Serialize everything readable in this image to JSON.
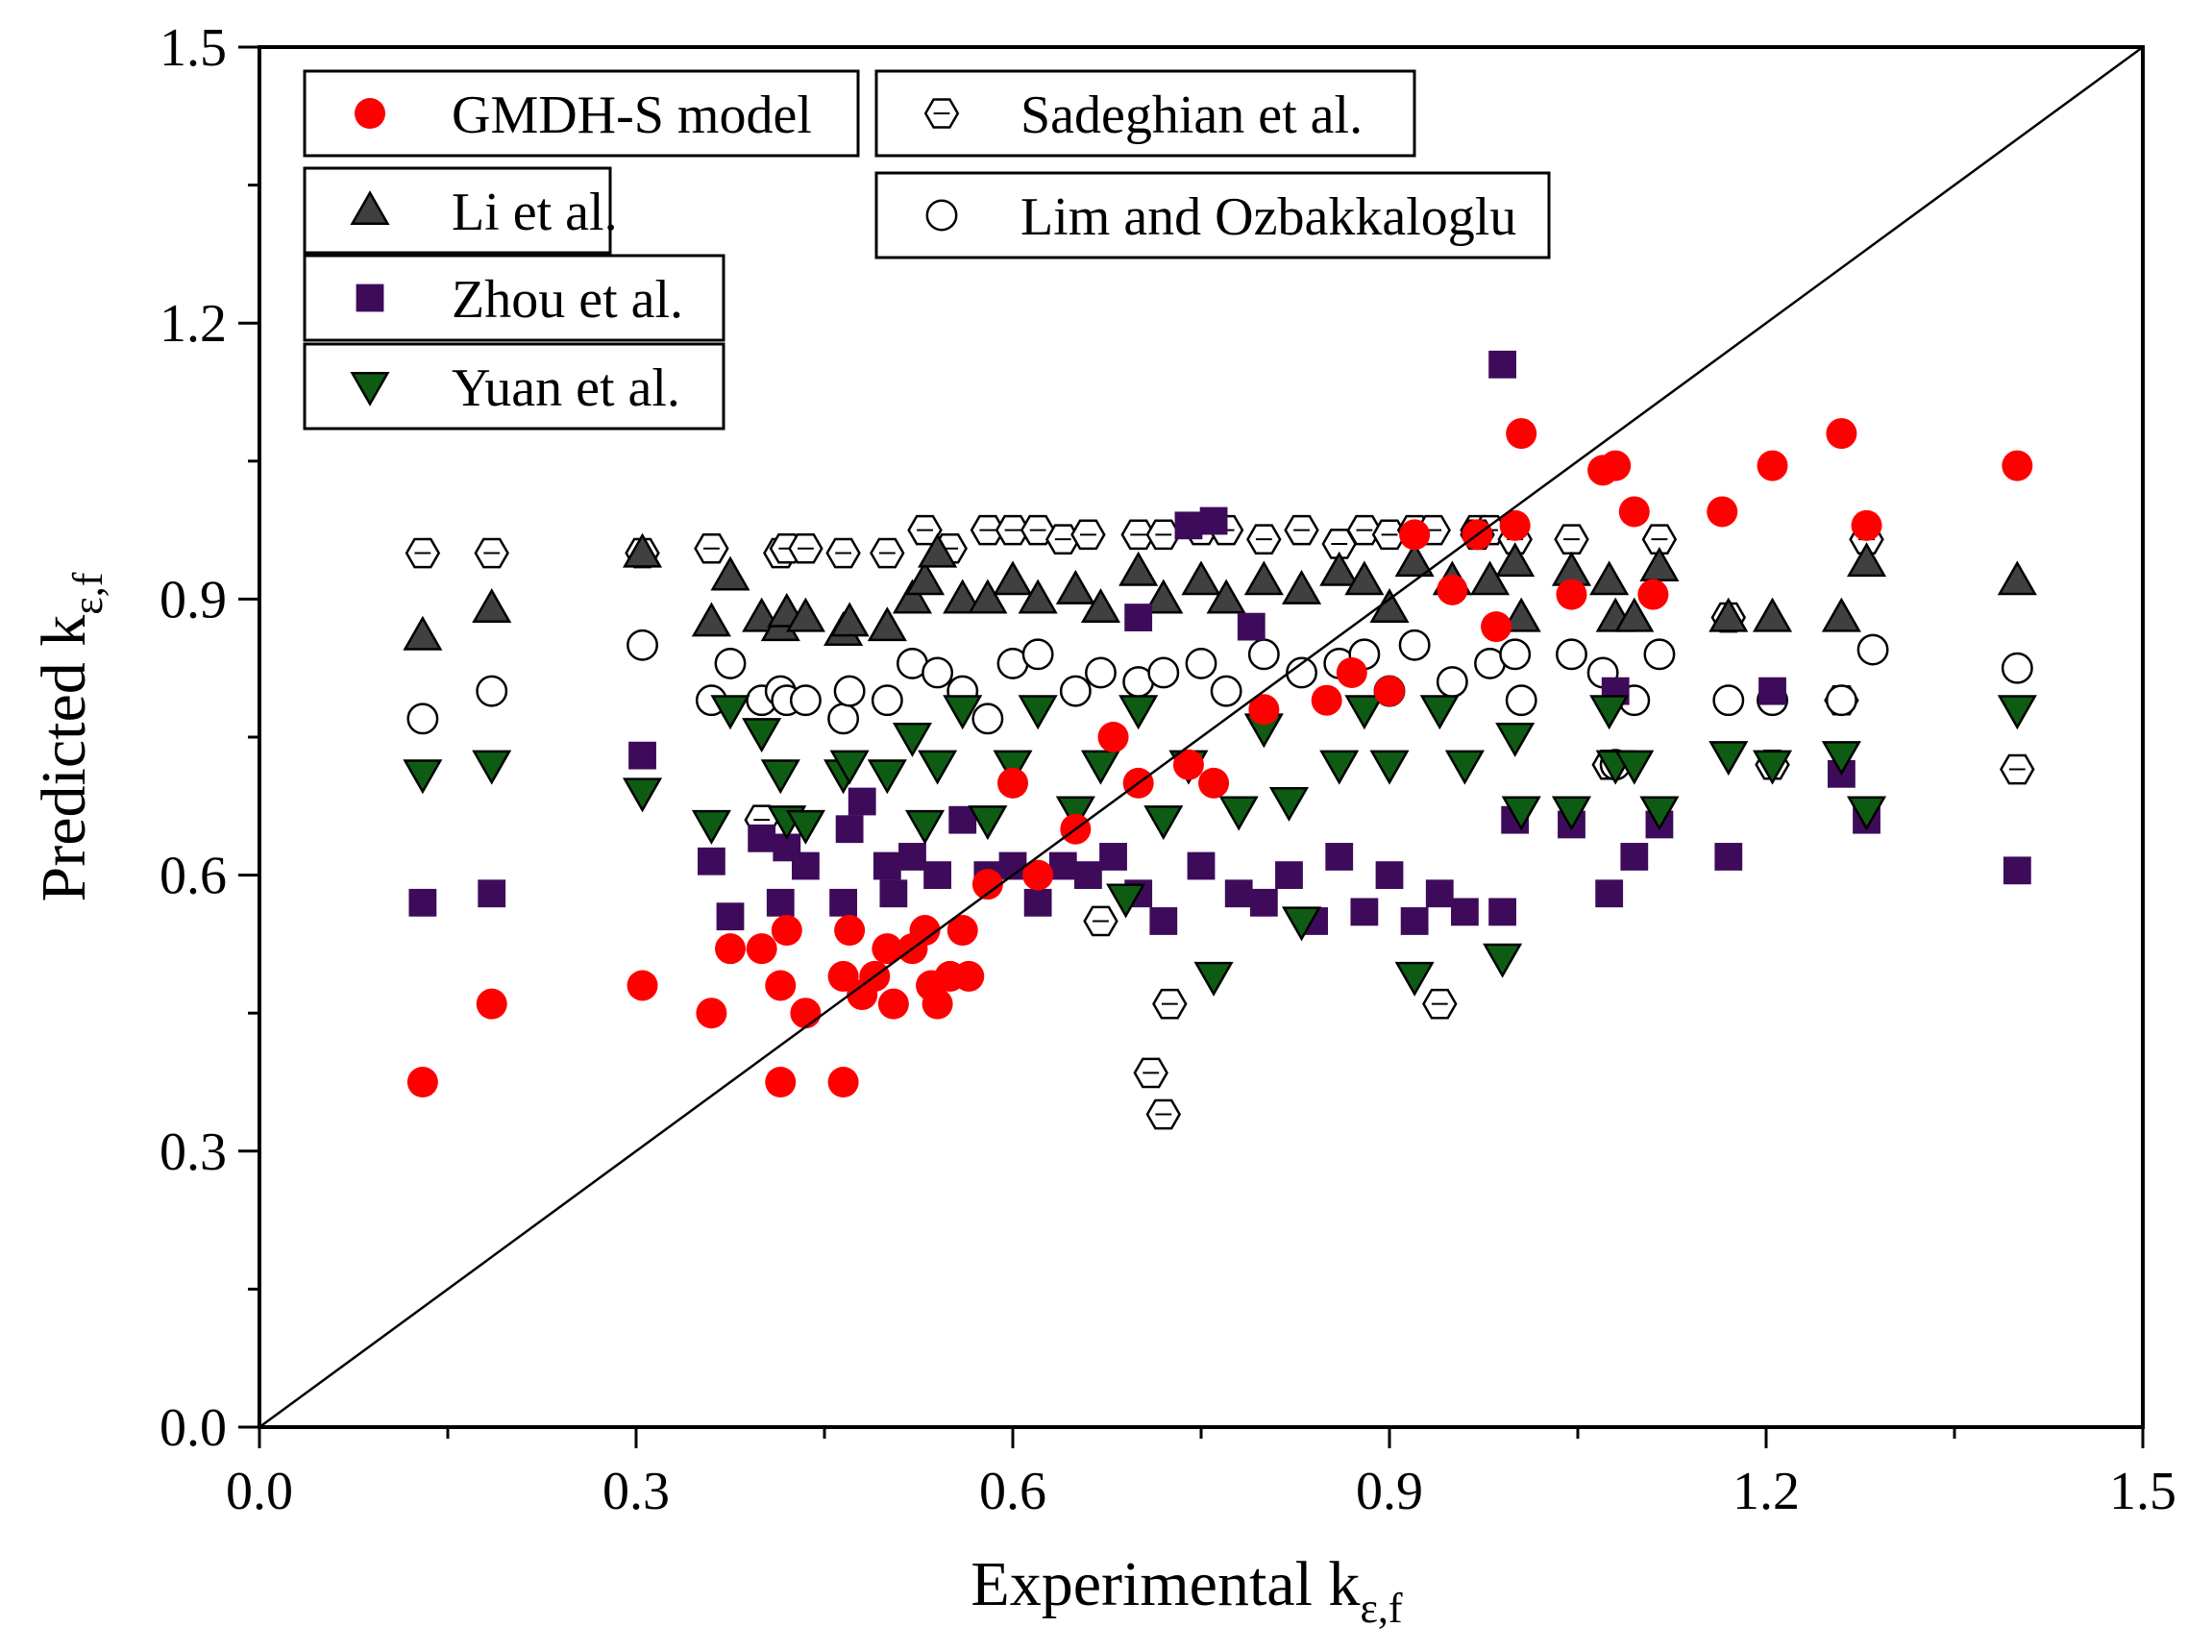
{
  "chart_data": {
    "type": "scatter",
    "title": "",
    "xlabel": "Experimental k",
    "xlabel_sub": "ε,f",
    "ylabel": "Predicted k",
    "ylabel_sub": "ε,f",
    "xlim": [
      0.0,
      1.5
    ],
    "ylim": [
      0.0,
      1.5
    ],
    "xticks": [
      "0.0",
      "0.3",
      "0.6",
      "0.9",
      "1.2",
      "1.5"
    ],
    "yticks": [
      "0.0",
      "0.3",
      "0.6",
      "0.9",
      "1.2",
      "1.5"
    ],
    "grid": false,
    "reference_line": {
      "name": "1:1 line",
      "from": [
        0,
        0
      ],
      "to": [
        1.5,
        1.5
      ]
    },
    "legend_position": "top-left",
    "series": [
      {
        "name": "GMDH-S model",
        "marker": "filled-circle",
        "color": "#ff0000",
        "points": [
          [
            0.13,
            0.375
          ],
          [
            0.185,
            0.46
          ],
          [
            0.305,
            0.48
          ],
          [
            0.36,
            0.45
          ],
          [
            0.375,
            0.52
          ],
          [
            0.4,
            0.52
          ],
          [
            0.415,
            0.375
          ],
          [
            0.415,
            0.48
          ],
          [
            0.42,
            0.54
          ],
          [
            0.435,
            0.45
          ],
          [
            0.465,
            0.375
          ],
          [
            0.465,
            0.49
          ],
          [
            0.47,
            0.54
          ],
          [
            0.48,
            0.47
          ],
          [
            0.49,
            0.49
          ],
          [
            0.5,
            0.52
          ],
          [
            0.505,
            0.46
          ],
          [
            0.52,
            0.52
          ],
          [
            0.53,
            0.54
          ],
          [
            0.535,
            0.48
          ],
          [
            0.54,
            0.46
          ],
          [
            0.55,
            0.49
          ],
          [
            0.56,
            0.54
          ],
          [
            0.565,
            0.49
          ],
          [
            0.58,
            0.59
          ],
          [
            0.6,
            0.7
          ],
          [
            0.62,
            0.6
          ],
          [
            0.65,
            0.65
          ],
          [
            0.68,
            0.75
          ],
          [
            0.7,
            0.7
          ],
          [
            0.74,
            0.72
          ],
          [
            0.76,
            0.7
          ],
          [
            0.8,
            0.78
          ],
          [
            0.85,
            0.79
          ],
          [
            0.87,
            0.82
          ],
          [
            0.9,
            0.8
          ],
          [
            0.92,
            0.97
          ],
          [
            0.95,
            0.91
          ],
          [
            0.97,
            0.97
          ],
          [
            0.985,
            0.87
          ],
          [
            1.0,
            0.98
          ],
          [
            1.005,
            1.08
          ],
          [
            1.045,
            0.905
          ],
          [
            1.07,
            1.04
          ],
          [
            1.08,
            1.045
          ],
          [
            1.095,
            0.995
          ],
          [
            1.11,
            0.905
          ],
          [
            1.165,
            0.995
          ],
          [
            1.205,
            1.045
          ],
          [
            1.26,
            1.08
          ],
          [
            1.28,
            0.98
          ],
          [
            1.4,
            1.045
          ]
        ]
      },
      {
        "name": "Sadeghian et al.",
        "marker": "hexagon",
        "color": "#ffffff",
        "points": [
          [
            0.13,
            0.95
          ],
          [
            0.185,
            0.95
          ],
          [
            0.305,
            0.95
          ],
          [
            0.36,
            0.955
          ],
          [
            0.4,
            0.66
          ],
          [
            0.415,
            0.95
          ],
          [
            0.42,
            0.955
          ],
          [
            0.435,
            0.955
          ],
          [
            0.465,
            0.95
          ],
          [
            0.5,
            0.95
          ],
          [
            0.53,
            0.975
          ],
          [
            0.55,
            0.955
          ],
          [
            0.58,
            0.975
          ],
          [
            0.6,
            0.975
          ],
          [
            0.62,
            0.975
          ],
          [
            0.64,
            0.965
          ],
          [
            0.66,
            0.97
          ],
          [
            0.67,
            0.55
          ],
          [
            0.7,
            0.97
          ],
          [
            0.72,
            0.97
          ],
          [
            0.71,
            0.385
          ],
          [
            0.72,
            0.34
          ],
          [
            0.725,
            0.46
          ],
          [
            0.75,
            0.975
          ],
          [
            0.77,
            0.975
          ],
          [
            0.8,
            0.965
          ],
          [
            0.83,
            0.975
          ],
          [
            0.86,
            0.96
          ],
          [
            0.88,
            0.975
          ],
          [
            0.9,
            0.97
          ],
          [
            0.92,
            0.975
          ],
          [
            0.935,
            0.975
          ],
          [
            0.94,
            0.46
          ],
          [
            0.97,
            0.975
          ],
          [
            0.98,
            0.975
          ],
          [
            1.0,
            0.965
          ],
          [
            1.045,
            0.965
          ],
          [
            1.075,
            0.72
          ],
          [
            1.115,
            0.965
          ],
          [
            1.17,
            0.88
          ],
          [
            1.205,
            0.72
          ],
          [
            1.26,
            0.79
          ],
          [
            1.28,
            0.965
          ],
          [
            1.4,
            0.715
          ],
          [
            0.97,
            0.97
          ]
        ]
      },
      {
        "name": "Li et al.",
        "marker": "filled-triangle-up",
        "color": "#404040",
        "points": [
          [
            0.13,
            0.86
          ],
          [
            0.185,
            0.89
          ],
          [
            0.305,
            0.95
          ],
          [
            0.36,
            0.875
          ],
          [
            0.375,
            0.925
          ],
          [
            0.4,
            0.88
          ],
          [
            0.415,
            0.87
          ],
          [
            0.42,
            0.885
          ],
          [
            0.435,
            0.88
          ],
          [
            0.465,
            0.865
          ],
          [
            0.47,
            0.875
          ],
          [
            0.5,
            0.87
          ],
          [
            0.52,
            0.9
          ],
          [
            0.53,
            0.92
          ],
          [
            0.54,
            0.95
          ],
          [
            0.56,
            0.9
          ],
          [
            0.58,
            0.9
          ],
          [
            0.6,
            0.92
          ],
          [
            0.62,
            0.9
          ],
          [
            0.65,
            0.91
          ],
          [
            0.67,
            0.89
          ],
          [
            0.7,
            0.93
          ],
          [
            0.72,
            0.9
          ],
          [
            0.75,
            0.92
          ],
          [
            0.77,
            0.9
          ],
          [
            0.8,
            0.92
          ],
          [
            0.83,
            0.91
          ],
          [
            0.86,
            0.93
          ],
          [
            0.88,
            0.92
          ],
          [
            0.9,
            0.89
          ],
          [
            0.92,
            0.94
          ],
          [
            0.95,
            0.92
          ],
          [
            0.98,
            0.92
          ],
          [
            1.0,
            0.94
          ],
          [
            1.005,
            0.88
          ],
          [
            1.045,
            0.93
          ],
          [
            1.075,
            0.92
          ],
          [
            1.08,
            0.88
          ],
          [
            1.095,
            0.88
          ],
          [
            1.115,
            0.935
          ],
          [
            1.17,
            0.88
          ],
          [
            1.205,
            0.88
          ],
          [
            1.26,
            0.88
          ],
          [
            1.28,
            0.94
          ],
          [
            1.4,
            0.92
          ]
        ]
      },
      {
        "name": "Lim and Ozbakkaloglu",
        "marker": "open-circle",
        "color": "#ffffff",
        "points": [
          [
            0.13,
            0.77
          ],
          [
            0.185,
            0.8
          ],
          [
            0.305,
            0.85
          ],
          [
            0.36,
            0.79
          ],
          [
            0.375,
            0.83
          ],
          [
            0.4,
            0.79
          ],
          [
            0.415,
            0.8
          ],
          [
            0.42,
            0.79
          ],
          [
            0.435,
            0.79
          ],
          [
            0.465,
            0.77
          ],
          [
            0.47,
            0.8
          ],
          [
            0.5,
            0.79
          ],
          [
            0.52,
            0.83
          ],
          [
            0.54,
            0.82
          ],
          [
            0.56,
            0.8
          ],
          [
            0.58,
            0.77
          ],
          [
            0.6,
            0.83
          ],
          [
            0.62,
            0.84
          ],
          [
            0.65,
            0.8
          ],
          [
            0.67,
            0.82
          ],
          [
            0.7,
            0.81
          ],
          [
            0.72,
            0.82
          ],
          [
            0.75,
            0.83
          ],
          [
            0.77,
            0.8
          ],
          [
            0.8,
            0.84
          ],
          [
            0.83,
            0.82
          ],
          [
            0.86,
            0.83
          ],
          [
            0.88,
            0.84
          ],
          [
            0.9,
            0.8
          ],
          [
            0.92,
            0.85
          ],
          [
            0.95,
            0.81
          ],
          [
            0.98,
            0.83
          ],
          [
            1.0,
            0.84
          ],
          [
            1.005,
            0.79
          ],
          [
            1.045,
            0.84
          ],
          [
            1.07,
            0.82
          ],
          [
            1.08,
            0.72
          ],
          [
            1.095,
            0.79
          ],
          [
            1.115,
            0.84
          ],
          [
            1.17,
            0.79
          ],
          [
            1.205,
            0.79
          ],
          [
            1.26,
            0.79
          ],
          [
            1.285,
            0.845
          ],
          [
            1.4,
            0.825
          ]
        ]
      },
      {
        "name": "Zhou et al.",
        "marker": "filled-square",
        "color": "#3e0b5a",
        "points": [
          [
            0.13,
            0.57
          ],
          [
            0.185,
            0.58
          ],
          [
            0.305,
            0.73
          ],
          [
            0.36,
            0.615
          ],
          [
            0.375,
            0.555
          ],
          [
            0.4,
            0.64
          ],
          [
            0.415,
            0.57
          ],
          [
            0.42,
            0.63
          ],
          [
            0.435,
            0.61
          ],
          [
            0.465,
            0.57
          ],
          [
            0.47,
            0.65
          ],
          [
            0.48,
            0.68
          ],
          [
            0.5,
            0.61
          ],
          [
            0.505,
            0.58
          ],
          [
            0.52,
            0.62
          ],
          [
            0.54,
            0.6
          ],
          [
            0.56,
            0.66
          ],
          [
            0.58,
            0.6
          ],
          [
            0.6,
            0.61
          ],
          [
            0.62,
            0.57
          ],
          [
            0.64,
            0.61
          ],
          [
            0.66,
            0.6
          ],
          [
            0.68,
            0.62
          ],
          [
            0.7,
            0.58
          ],
          [
            0.7,
            0.88
          ],
          [
            0.72,
            0.55
          ],
          [
            0.74,
            0.98
          ],
          [
            0.75,
            0.61
          ],
          [
            0.76,
            0.985
          ],
          [
            0.78,
            0.58
          ],
          [
            0.8,
            0.57
          ],
          [
            0.79,
            0.87
          ],
          [
            0.82,
            0.6
          ],
          [
            0.84,
            0.55
          ],
          [
            0.86,
            0.62
          ],
          [
            0.88,
            0.56
          ],
          [
            0.9,
            0.6
          ],
          [
            0.92,
            0.55
          ],
          [
            0.94,
            0.58
          ],
          [
            0.96,
            0.56
          ],
          [
            0.99,
            1.155
          ],
          [
            0.99,
            0.56
          ],
          [
            1.0,
            0.66
          ],
          [
            1.045,
            0.655
          ],
          [
            1.075,
            0.58
          ],
          [
            1.08,
            0.8
          ],
          [
            1.095,
            0.62
          ],
          [
            1.115,
            0.655
          ],
          [
            1.17,
            0.62
          ],
          [
            1.205,
            0.8
          ],
          [
            1.26,
            0.71
          ],
          [
            1.28,
            0.66
          ],
          [
            1.4,
            0.605
          ]
        ]
      },
      {
        "name": "Yuan et al.",
        "marker": "filled-triangle-down",
        "color": "#0e5c14",
        "points": [
          [
            0.13,
            0.71
          ],
          [
            0.185,
            0.72
          ],
          [
            0.305,
            0.69
          ],
          [
            0.36,
            0.655
          ],
          [
            0.375,
            0.78
          ],
          [
            0.4,
            0.755
          ],
          [
            0.415,
            0.71
          ],
          [
            0.42,
            0.66
          ],
          [
            0.435,
            0.655
          ],
          [
            0.465,
            0.71
          ],
          [
            0.47,
            0.72
          ],
          [
            0.5,
            0.71
          ],
          [
            0.52,
            0.75
          ],
          [
            0.53,
            0.655
          ],
          [
            0.54,
            0.72
          ],
          [
            0.56,
            0.78
          ],
          [
            0.58,
            0.66
          ],
          [
            0.6,
            0.72
          ],
          [
            0.62,
            0.78
          ],
          [
            0.65,
            0.67
          ],
          [
            0.67,
            0.72
          ],
          [
            0.69,
            0.575
          ],
          [
            0.7,
            0.78
          ],
          [
            0.72,
            0.66
          ],
          [
            0.74,
            0.72
          ],
          [
            0.76,
            0.49
          ],
          [
            0.78,
            0.67
          ],
          [
            0.8,
            0.76
          ],
          [
            0.82,
            0.68
          ],
          [
            0.83,
            0.55
          ],
          [
            0.86,
            0.72
          ],
          [
            0.88,
            0.78
          ],
          [
            0.9,
            0.72
          ],
          [
            0.92,
            0.49
          ],
          [
            0.94,
            0.78
          ],
          [
            0.96,
            0.72
          ],
          [
            0.99,
            0.51
          ],
          [
            1.0,
            0.75
          ],
          [
            1.005,
            0.67
          ],
          [
            1.045,
            0.67
          ],
          [
            1.075,
            0.78
          ],
          [
            1.08,
            0.72
          ],
          [
            1.095,
            0.72
          ],
          [
            1.115,
            0.67
          ],
          [
            1.17,
            0.73
          ],
          [
            1.205,
            0.72
          ],
          [
            1.26,
            0.73
          ],
          [
            1.28,
            0.67
          ],
          [
            1.4,
            0.78
          ]
        ]
      }
    ]
  }
}
